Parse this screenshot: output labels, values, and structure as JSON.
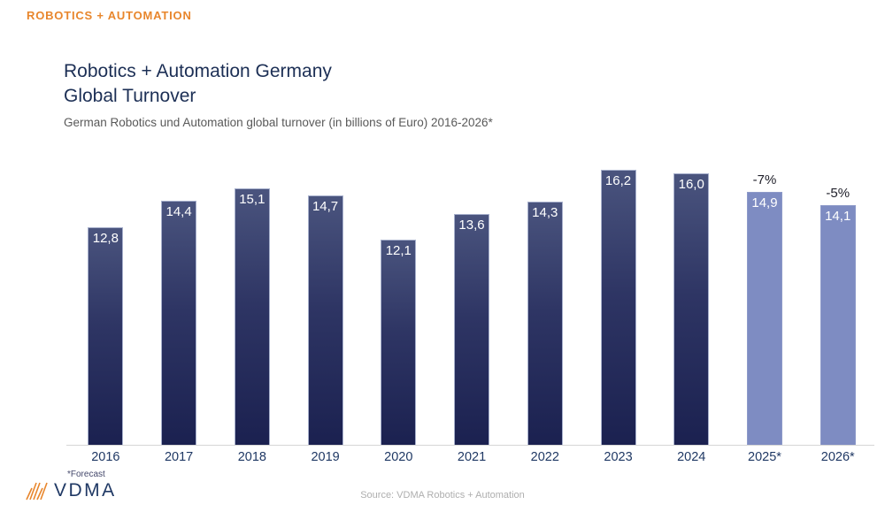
{
  "header": {
    "brand_label": "ROBOTICS + AUTOMATION"
  },
  "title": {
    "line1": "Robotics + Automation Germany",
    "line2": "Global Turnover"
  },
  "subtitle": "German Robotics und Automation global turnover (in billions of Euro) 2016-2026*",
  "chart_data": {
    "type": "bar",
    "title": "Robotics + Automation Germany Global Turnover",
    "xlabel": "",
    "ylabel": "global turnover (billions of Euro)",
    "ylim": [
      0,
      18
    ],
    "grid": false,
    "legend": "none",
    "categories": [
      "2016",
      "2017",
      "2018",
      "2019",
      "2020",
      "2021",
      "2022",
      "2023",
      "2024",
      "2025*",
      "2026*"
    ],
    "values": [
      12.8,
      14.4,
      15.1,
      14.7,
      12.1,
      13.6,
      14.3,
      16.2,
      16.0,
      14.9,
      14.1
    ],
    "value_labels": [
      "12,8",
      "14,4",
      "15,1",
      "14,7",
      "12,1",
      "13,6",
      "14,3",
      "16,2",
      "16,0",
      "14,9",
      "14,1"
    ],
    "percent_labels": [
      "",
      "",
      "",
      "",
      "",
      "",
      "",
      "",
      "",
      "-7%",
      "-5%"
    ],
    "forecast_indices": [
      9,
      10
    ],
    "colors": {
      "actual_bar_top": "#4a547e",
      "actual_bar_bottom": "#1b2150",
      "forecast_bar": "#7e8cc2",
      "accent_orange": "#e8862c",
      "navy": "#1f3864"
    }
  },
  "footnote": "*Forecast",
  "footer": {
    "logo_text": "VDMA",
    "source": "Source: VDMA Robotics + Automation"
  }
}
